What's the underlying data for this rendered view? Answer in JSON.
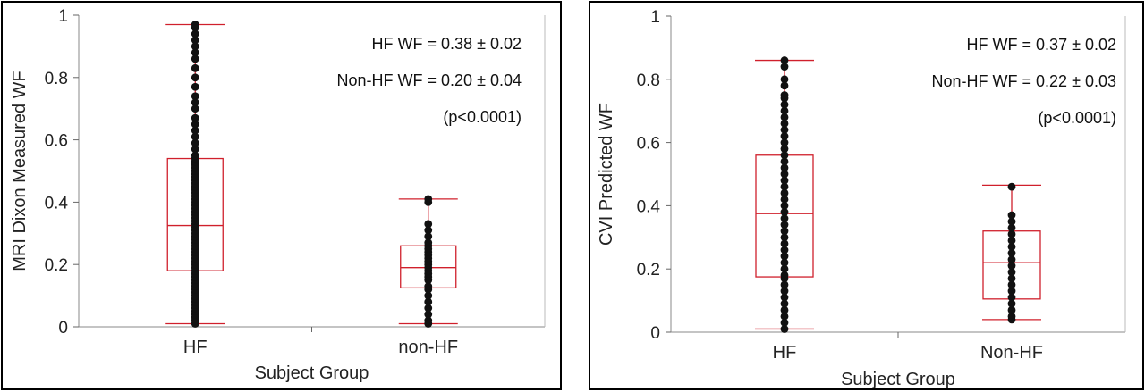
{
  "chart_data": [
    {
      "type": "box",
      "title": "",
      "xlabel": "Subject Group",
      "ylabel": "MRI Dixon Measured WF",
      "ylim": [
        0,
        1
      ],
      "yticks": [
        "0",
        "0.2",
        "0.4",
        "0.6",
        "0.8",
        "1"
      ],
      "categories": [
        "HF",
        "non-HF"
      ],
      "annotations": [
        "HF WF = 0.38 ± 0.02",
        "Non-HF WF = 0.20 ± 0.04",
        "(p<0.0001)"
      ],
      "box_color": "#d0202c",
      "point_color": "#111111",
      "groups": [
        {
          "name": "HF",
          "whisker_low": 0.01,
          "q1": 0.18,
          "median": 0.325,
          "q3": 0.54,
          "whisker_high": 0.97,
          "points": [
            0.01,
            0.02,
            0.03,
            0.04,
            0.05,
            0.06,
            0.07,
            0.08,
            0.09,
            0.1,
            0.11,
            0.12,
            0.13,
            0.14,
            0.15,
            0.16,
            0.17,
            0.18,
            0.19,
            0.2,
            0.21,
            0.22,
            0.23,
            0.24,
            0.25,
            0.26,
            0.27,
            0.28,
            0.29,
            0.3,
            0.31,
            0.32,
            0.33,
            0.34,
            0.35,
            0.36,
            0.37,
            0.38,
            0.39,
            0.4,
            0.41,
            0.42,
            0.43,
            0.44,
            0.45,
            0.46,
            0.47,
            0.48,
            0.49,
            0.5,
            0.51,
            0.52,
            0.53,
            0.54,
            0.55,
            0.57,
            0.59,
            0.61,
            0.63,
            0.65,
            0.67,
            0.7,
            0.72,
            0.74,
            0.77,
            0.8,
            0.83,
            0.86,
            0.88,
            0.9,
            0.92,
            0.94,
            0.96,
            0.97
          ]
        },
        {
          "name": "non-HF",
          "whisker_low": 0.01,
          "q1": 0.125,
          "median": 0.19,
          "q3": 0.26,
          "whisker_high": 0.41,
          "points": [
            0.01,
            0.02,
            0.04,
            0.06,
            0.08,
            0.1,
            0.12,
            0.13,
            0.15,
            0.16,
            0.17,
            0.18,
            0.19,
            0.2,
            0.21,
            0.22,
            0.23,
            0.24,
            0.25,
            0.26,
            0.27,
            0.29,
            0.31,
            0.33,
            0.4,
            0.41
          ]
        }
      ]
    },
    {
      "type": "box",
      "title": "",
      "xlabel": "Subject Group",
      "ylabel": "CVI Predicted WF",
      "ylim": [
        0,
        1
      ],
      "yticks": [
        "0",
        "0.2",
        "0.4",
        "0.6",
        "0.8",
        "1"
      ],
      "categories": [
        "HF",
        "Non-HF"
      ],
      "annotations": [
        "HF WF = 0.37 ± 0.02",
        "Non-HF WF = 0.22 ± 0.03",
        "(p<0.0001)"
      ],
      "box_color": "#d0202c",
      "point_color": "#111111",
      "groups": [
        {
          "name": "HF",
          "whisker_low": 0.01,
          "q1": 0.175,
          "median": 0.375,
          "q3": 0.56,
          "whisker_high": 0.86,
          "points": [
            0.01,
            0.03,
            0.05,
            0.07,
            0.09,
            0.11,
            0.13,
            0.15,
            0.17,
            0.18,
            0.2,
            0.22,
            0.24,
            0.26,
            0.28,
            0.3,
            0.32,
            0.34,
            0.36,
            0.38,
            0.4,
            0.42,
            0.44,
            0.46,
            0.48,
            0.5,
            0.52,
            0.54,
            0.56,
            0.58,
            0.6,
            0.62,
            0.64,
            0.66,
            0.68,
            0.7,
            0.72,
            0.74,
            0.75,
            0.78,
            0.8,
            0.84,
            0.86
          ]
        },
        {
          "name": "Non-HF",
          "whisker_low": 0.04,
          "q1": 0.105,
          "median": 0.22,
          "q3": 0.32,
          "whisker_high": 0.465,
          "points": [
            0.04,
            0.05,
            0.07,
            0.09,
            0.11,
            0.13,
            0.15,
            0.17,
            0.19,
            0.21,
            0.23,
            0.25,
            0.27,
            0.29,
            0.31,
            0.33,
            0.35,
            0.37,
            0.46
          ]
        }
      ]
    }
  ]
}
